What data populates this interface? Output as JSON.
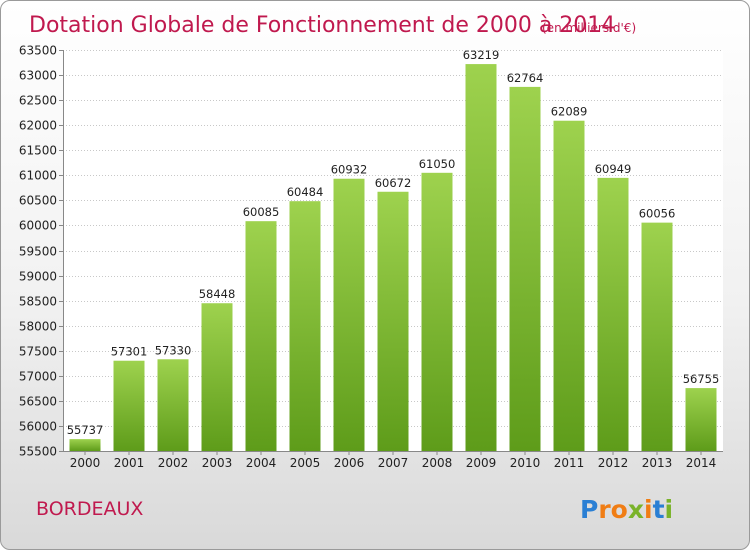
{
  "chart_data": {
    "type": "bar",
    "title": "Dotation Globale de Fonctionnement de 2000 à 2014",
    "subtitle": "(en milliers d'€)",
    "categories": [
      "2000",
      "2001",
      "2002",
      "2003",
      "2004",
      "2005",
      "2006",
      "2007",
      "2008",
      "2009",
      "2010",
      "2011",
      "2012",
      "2013",
      "2014"
    ],
    "values": [
      55737,
      57301,
      57330,
      58448,
      60085,
      60484,
      60932,
      60672,
      61050,
      63219,
      62764,
      62089,
      60949,
      60056,
      56755
    ],
    "ylim": [
      55500,
      63500
    ],
    "yticks": [
      55500,
      56000,
      56500,
      57000,
      57500,
      58000,
      58500,
      59000,
      59500,
      60000,
      60500,
      61000,
      61500,
      62000,
      62500,
      63000,
      63500
    ],
    "xlabel": "",
    "ylabel": "",
    "grid": true,
    "colors": {
      "bar_top": "#9ed24e",
      "bar_bottom": "#5e9c1a",
      "title": "#c0194e"
    }
  },
  "footer": {
    "town": "BORDEAUX",
    "logo": [
      "P",
      "r",
      "o",
      "x",
      "i",
      "t",
      "i"
    ],
    "logo_colors": [
      "#2a7fd4",
      "#f07d14",
      "#f07d14",
      "#7ab32a",
      "#f07d14",
      "#2a7fd4",
      "#7ab32a"
    ]
  }
}
